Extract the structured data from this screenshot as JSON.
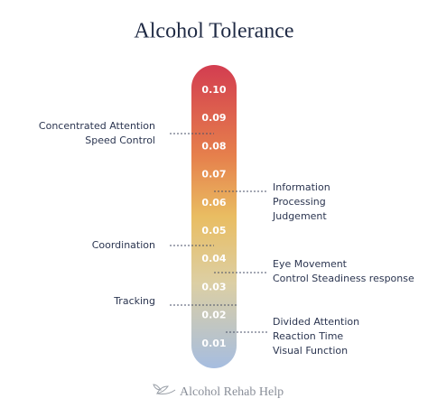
{
  "title": "Alcohol Tolerance",
  "scale": [
    "0.10",
    "0.09",
    "0.08",
    "0.07",
    "0.06",
    "0.05",
    "0.04",
    "0.03",
    "0.02",
    "0.01"
  ],
  "left_notes": [
    {
      "lines": [
        "Concentrated Attention",
        "Speed Control"
      ]
    },
    {
      "lines": [
        "Coordination"
      ]
    },
    {
      "lines": [
        "Tracking"
      ]
    }
  ],
  "right_notes": [
    {
      "lines": [
        "Information",
        "Processing",
        "Judgement"
      ]
    },
    {
      "lines": [
        "Eye Movement",
        "Control Steadiness response"
      ]
    },
    {
      "lines": [
        "Divided Attention",
        "Reaction Time",
        "Visual Function"
      ]
    }
  ],
  "footer": "Alcohol Rehab Help"
}
